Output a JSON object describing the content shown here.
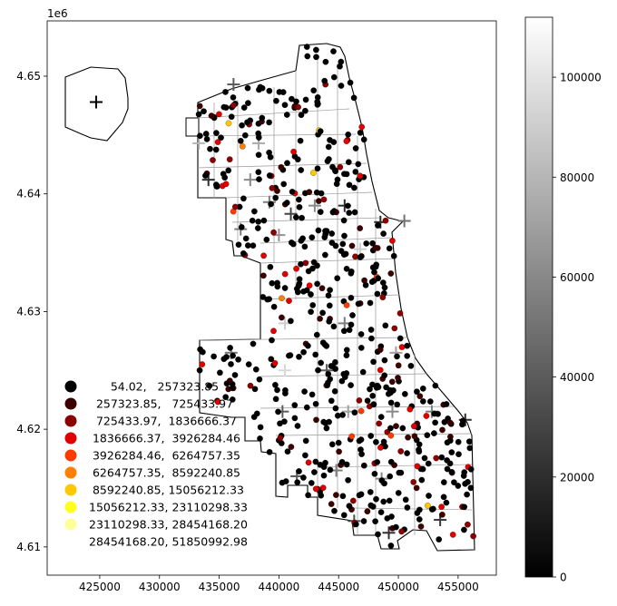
{
  "chart_data": {
    "type": "scatter",
    "subtype": "choropleth-map",
    "title": "",
    "xlabel": "",
    "ylabel": "",
    "x_offset_label": "",
    "y_offset_label": "1e6",
    "xlim": [
      420600,
      458200
    ],
    "ylim": [
      4.6076,
      4.6547
    ],
    "x_ticks": [
      425000,
      430000,
      435000,
      440000,
      445000,
      450000,
      455000
    ],
    "x_tick_labels": [
      "425000",
      "430000",
      "435000",
      "440000",
      "445000",
      "450000",
      "455000"
    ],
    "y_ticks": [
      4.61,
      4.62,
      4.63,
      4.64,
      4.65
    ],
    "y_tick_labels": [
      "4.61",
      "4.62",
      "4.63",
      "4.64",
      "4.65"
    ],
    "grid": false,
    "colorbar": {
      "colormap": "gray",
      "range": [
        0,
        112000
      ],
      "ticks": [
        0,
        20000,
        40000,
        60000,
        80000,
        100000
      ],
      "tick_labels": [
        "0",
        "20000",
        "40000",
        "60000",
        "80000",
        "100000"
      ]
    },
    "legend": {
      "placement": "lower-left",
      "entries": [
        {
          "label": "      54.02,   257323.85",
          "color": "#000000"
        },
        {
          "label": "  257323.85,   725433.97",
          "color": "#3d0000"
        },
        {
          "label": "  725433.97,  1836666.37",
          "color": "#8b0000"
        },
        {
          "label": " 1836666.37,  3926284.46",
          "color": "#e00000"
        },
        {
          "label": " 3926284.46,  6264757.35",
          "color": "#ff3c00"
        },
        {
          "label": " 6264757.35,  8592240.85",
          "color": "#ff8000"
        },
        {
          "label": " 8592240.85, 15056212.33",
          "color": "#ffc800"
        },
        {
          "label": "15056212.33, 23110298.33",
          "color": "#ffff20"
        },
        {
          "label": "23110298.33, 28454168.20",
          "color": "#ffff99"
        },
        {
          "label": "28454168.20, 51850992.98",
          "color": "#ffffff"
        }
      ]
    },
    "point_colors": [
      "#000000",
      "#3d0000",
      "#8b0000",
      "#e00000",
      "#ff3c00",
      "#ff8000",
      "#ffc800",
      "#ffff20",
      "#ffff99",
      "#ffffff"
    ],
    "centroids": [
      {
        "x": 424700,
        "y": 4.6478,
        "value": 0
      },
      {
        "x": 433300,
        "y": 4.6443,
        "value": 80000
      },
      {
        "x": 436200,
        "y": 4.6493,
        "value": 40000
      },
      {
        "x": 438300,
        "y": 4.6443,
        "value": 75000
      },
      {
        "x": 434100,
        "y": 4.6412,
        "value": 20000
      },
      {
        "x": 437600,
        "y": 4.6412,
        "value": 60000
      },
      {
        "x": 439200,
        "y": 4.6393,
        "value": 55000
      },
      {
        "x": 441000,
        "y": 4.6383,
        "value": 30000
      },
      {
        "x": 443000,
        "y": 4.639,
        "value": 60000
      },
      {
        "x": 445500,
        "y": 4.639,
        "value": 20000
      },
      {
        "x": 448500,
        "y": 4.6376,
        "value": 20000
      },
      {
        "x": 450500,
        "y": 4.6377,
        "value": 50000
      },
      {
        "x": 436800,
        "y": 4.637,
        "value": 55000
      },
      {
        "x": 440000,
        "y": 4.6365,
        "value": 65000
      },
      {
        "x": 446800,
        "y": 4.6353,
        "value": 90000
      },
      {
        "x": 440500,
        "y": 4.629,
        "value": 90000
      },
      {
        "x": 445500,
        "y": 4.629,
        "value": 55000
      },
      {
        "x": 436000,
        "y": 4.6265,
        "value": 50000
      },
      {
        "x": 440500,
        "y": 4.625,
        "value": 95000
      },
      {
        "x": 444000,
        "y": 4.625,
        "value": 40000
      },
      {
        "x": 449800,
        "y": 4.6265,
        "value": 70000
      },
      {
        "x": 440300,
        "y": 4.6215,
        "value": 40000
      },
      {
        "x": 445800,
        "y": 4.6215,
        "value": 70000
      },
      {
        "x": 449500,
        "y": 4.6215,
        "value": 60000
      },
      {
        "x": 452800,
        "y": 4.6215,
        "value": 55000
      },
      {
        "x": 441500,
        "y": 4.616,
        "value": 40000
      },
      {
        "x": 444800,
        "y": 4.6165,
        "value": 55000
      },
      {
        "x": 448600,
        "y": 4.6158,
        "value": 60000
      },
      {
        "x": 446300,
        "y": 4.6122,
        "value": 35000
      },
      {
        "x": 449200,
        "y": 4.6112,
        "value": 20000
      },
      {
        "x": 453500,
        "y": 4.6123,
        "value": 25000
      },
      {
        "x": 455600,
        "y": 4.6208,
        "value": 20000
      }
    ]
  }
}
